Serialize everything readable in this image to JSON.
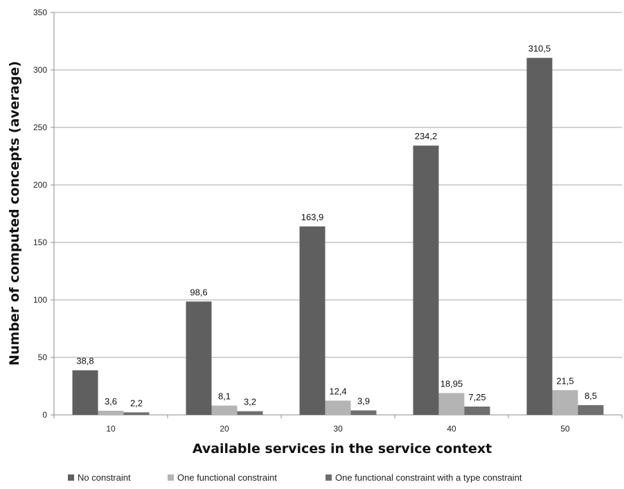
{
  "chart_data": {
    "type": "bar",
    "title": "",
    "xlabel": "Available services in the service context",
    "ylabel": "Number of computed concepts (average)",
    "categories": [
      "10",
      "20",
      "30",
      "40",
      "50"
    ],
    "series": [
      {
        "name": "No constraint",
        "color": "#5f5f5f",
        "values": [
          38.8,
          98.6,
          163.9,
          234.2,
          310.5
        ],
        "labels": [
          "38,8",
          "98,6",
          "163,9",
          "234,2",
          "310,5"
        ]
      },
      {
        "name": "One functional constraint",
        "color": "#b4b4b4",
        "values": [
          3.6,
          8.1,
          12.4,
          18.95,
          21.5
        ],
        "labels": [
          "3,6",
          "8,1",
          "12,4",
          "18,95",
          "21,5"
        ]
      },
      {
        "name": "One functional constraint with a type constraint",
        "color": "#6e6e6e",
        "values": [
          2.2,
          3.2,
          3.9,
          7.25,
          8.5
        ],
        "labels": [
          "2,2",
          "3,2",
          "3,9",
          "7,25",
          "8,5"
        ]
      }
    ],
    "ylim": [
      0,
      350
    ],
    "yticks": [
      0,
      50,
      100,
      150,
      200,
      250,
      300,
      350
    ],
    "grid": true,
    "legend_position": "bottom"
  }
}
